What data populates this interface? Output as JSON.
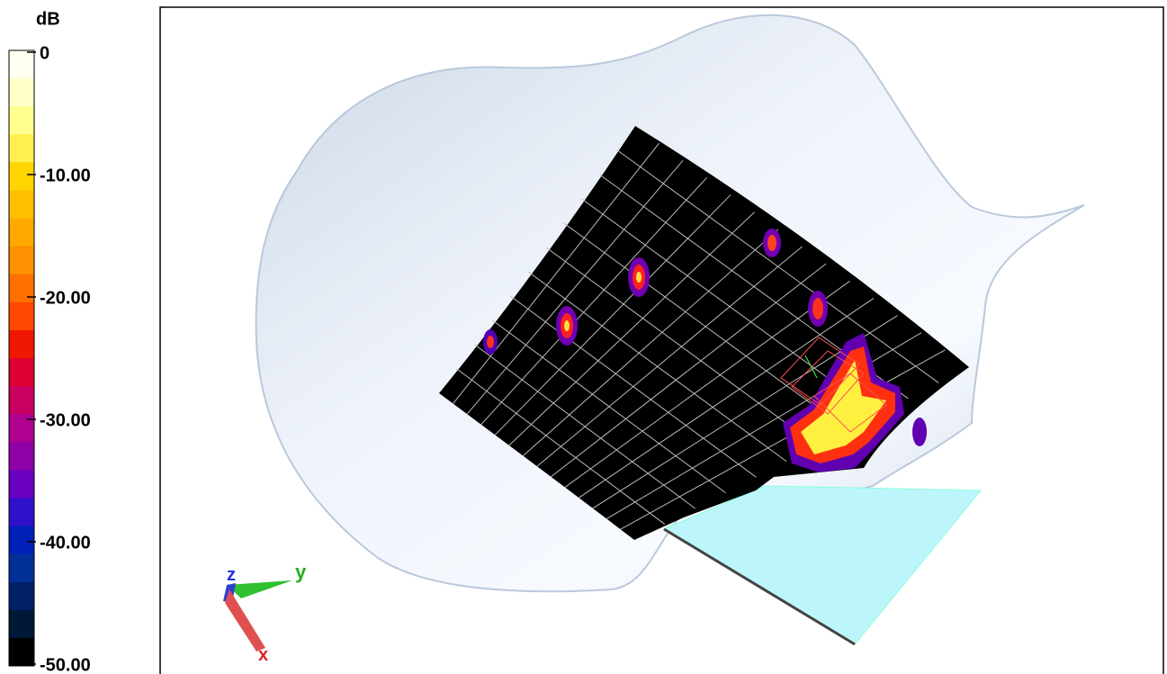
{
  "colorbar": {
    "unit": "dB",
    "labels": [
      "0",
      "-10.00",
      "-20.00",
      "-30.00",
      "-40.00",
      "-50.00"
    ]
  },
  "axes": {
    "z": "z",
    "y": "y",
    "x": "x"
  }
}
